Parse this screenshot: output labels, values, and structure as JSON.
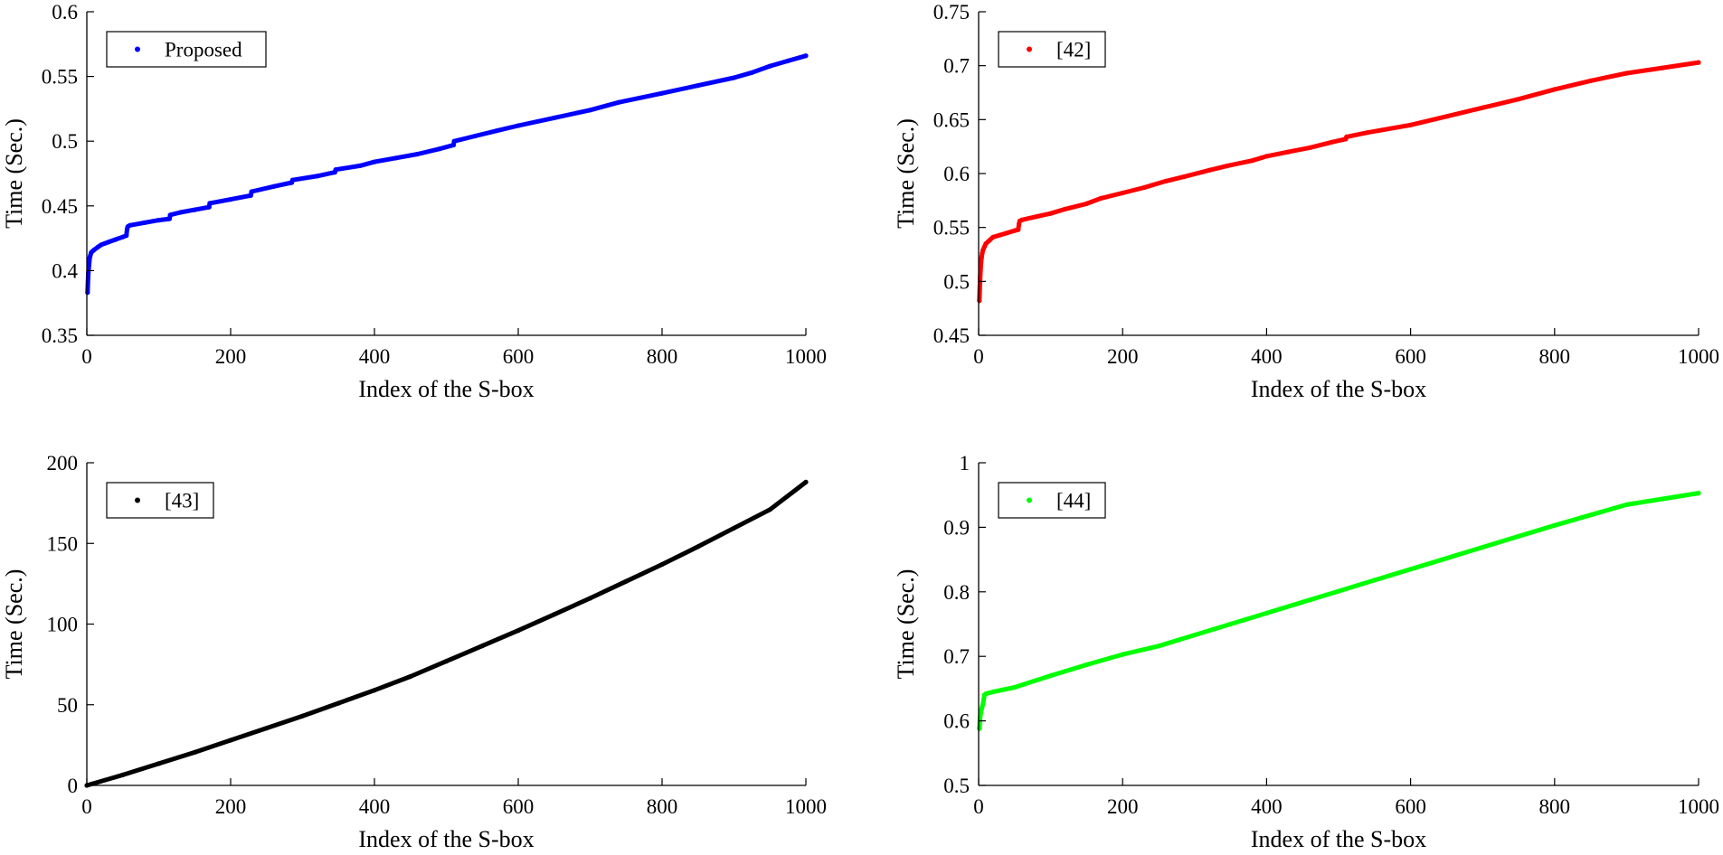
{
  "chart_data": [
    {
      "type": "scatter",
      "title": "",
      "xlabel": "Index of the S-box",
      "ylabel": "Time (Sec.)",
      "xlim": [
        0,
        1000
      ],
      "ylim": [
        0.35,
        0.6
      ],
      "xticks": [
        "0",
        "200",
        "400",
        "600",
        "800",
        "1000"
      ],
      "yticks": [
        "0.35",
        "0.4",
        "0.45",
        "0.5",
        "0.55",
        "0.6"
      ],
      "legend": {
        "label": "Proposed",
        "location": "top-left"
      },
      "series": [
        {
          "name": "Proposed",
          "color": "#0000ff",
          "x": [
            1,
            2,
            3,
            4,
            5,
            6,
            8,
            10,
            15,
            20,
            25,
            30,
            40,
            50,
            55,
            56,
            57,
            60,
            80,
            100,
            115,
            116,
            130,
            150,
            170,
            171,
            200,
            228,
            229,
            260,
            285,
            286,
            320,
            345,
            346,
            380,
            400,
            430,
            460,
            490,
            510,
            511,
            540,
            570,
            600,
            650,
            700,
            740,
            800,
            850,
            900,
            925,
            950,
            975,
            1000
          ],
          "y": [
            0.383,
            0.398,
            0.404,
            0.41,
            0.412,
            0.414,
            0.415,
            0.416,
            0.418,
            0.42,
            0.421,
            0.422,
            0.424,
            0.426,
            0.427,
            0.432,
            0.434,
            0.435,
            0.437,
            0.439,
            0.44,
            0.443,
            0.445,
            0.447,
            0.449,
            0.452,
            0.455,
            0.458,
            0.461,
            0.465,
            0.468,
            0.47,
            0.473,
            0.476,
            0.478,
            0.481,
            0.484,
            0.487,
            0.49,
            0.494,
            0.497,
            0.5,
            0.504,
            0.508,
            0.512,
            0.518,
            0.524,
            0.53,
            0.537,
            0.543,
            0.549,
            0.553,
            0.558,
            0.562,
            0.566
          ]
        }
      ]
    },
    {
      "type": "scatter",
      "title": "",
      "xlabel": "Index of the S-box",
      "ylabel": "Time (Sec.)",
      "xlim": [
        0,
        1000
      ],
      "ylim": [
        0.45,
        0.75
      ],
      "xticks": [
        "0",
        "200",
        "400",
        "600",
        "800",
        "1000"
      ],
      "yticks": [
        "0.45",
        "0.5",
        "0.55",
        "0.6",
        "0.65",
        "0.7",
        "0.75"
      ],
      "legend": {
        "label": "[42]",
        "location": "top-left"
      },
      "series": [
        {
          "name": "[42]",
          "color": "#ff0000",
          "x": [
            1,
            2,
            3,
            4,
            5,
            6,
            8,
            10,
            15,
            20,
            30,
            40,
            50,
            55,
            56,
            57,
            60,
            80,
            100,
            120,
            150,
            170,
            200,
            230,
            260,
            285,
            320,
            345,
            380,
            400,
            430,
            460,
            490,
            510,
            511,
            540,
            600,
            650,
            700,
            750,
            800,
            850,
            900,
            950,
            1000
          ],
          "y": [
            0.482,
            0.502,
            0.514,
            0.522,
            0.526,
            0.529,
            0.532,
            0.535,
            0.538,
            0.541,
            0.543,
            0.545,
            0.547,
            0.548,
            0.553,
            0.556,
            0.557,
            0.56,
            0.563,
            0.567,
            0.572,
            0.577,
            0.582,
            0.587,
            0.593,
            0.597,
            0.603,
            0.607,
            0.612,
            0.616,
            0.62,
            0.624,
            0.629,
            0.632,
            0.634,
            0.638,
            0.645,
            0.653,
            0.661,
            0.669,
            0.678,
            0.686,
            0.693,
            0.698,
            0.703
          ]
        }
      ]
    },
    {
      "type": "scatter",
      "title": "",
      "xlabel": "Index of the S-box",
      "ylabel": "Time (Sec.)",
      "xlim": [
        0,
        1000
      ],
      "ylim": [
        0,
        200
      ],
      "xticks": [
        "0",
        "200",
        "400",
        "600",
        "800",
        "1000"
      ],
      "yticks": [
        "0",
        "50",
        "100",
        "150",
        "200"
      ],
      "legend": {
        "label": "[43]",
        "location": "top-left"
      },
      "series": [
        {
          "name": "[43]",
          "color": "#000000",
          "x": [
            0,
            50,
            100,
            150,
            200,
            250,
            300,
            350,
            400,
            450,
            500,
            550,
            600,
            650,
            700,
            750,
            800,
            850,
            900,
            950,
            1000
          ],
          "y": [
            0,
            6.5,
            13.5,
            20.5,
            28,
            35.5,
            43,
            51,
            59,
            67.5,
            77,
            86.5,
            96,
            106,
            116,
            126.5,
            137,
            148,
            159.5,
            171,
            188
          ]
        }
      ]
    },
    {
      "type": "scatter",
      "title": "",
      "xlabel": "Index of the S-box",
      "ylabel": "Time (Sec.)",
      "xlim": [
        0,
        1000
      ],
      "ylim": [
        0.5,
        1
      ],
      "xticks": [
        "0",
        "200",
        "400",
        "600",
        "800",
        "1000"
      ],
      "yticks": [
        "0.5",
        "0.6",
        "0.7",
        "0.8",
        "0.9",
        "1"
      ],
      "legend": {
        "label": "[44]",
        "location": "top-left"
      },
      "series": [
        {
          "name": "[44]",
          "color": "#00ff00",
          "x": [
            1,
            2,
            3,
            4,
            5,
            6,
            8,
            10,
            20,
            50,
            100,
            150,
            200,
            250,
            300,
            350,
            400,
            450,
            500,
            550,
            600,
            650,
            700,
            750,
            800,
            850,
            900,
            950,
            1000
          ],
          "y": [
            0.588,
            0.605,
            0.612,
            0.618,
            0.622,
            0.626,
            0.64,
            0.642,
            0.645,
            0.652,
            0.67,
            0.687,
            0.703,
            0.716,
            0.733,
            0.75,
            0.767,
            0.784,
            0.801,
            0.818,
            0.835,
            0.852,
            0.869,
            0.886,
            0.903,
            0.919,
            0.935,
            0.944,
            0.953
          ]
        }
      ]
    }
  ]
}
